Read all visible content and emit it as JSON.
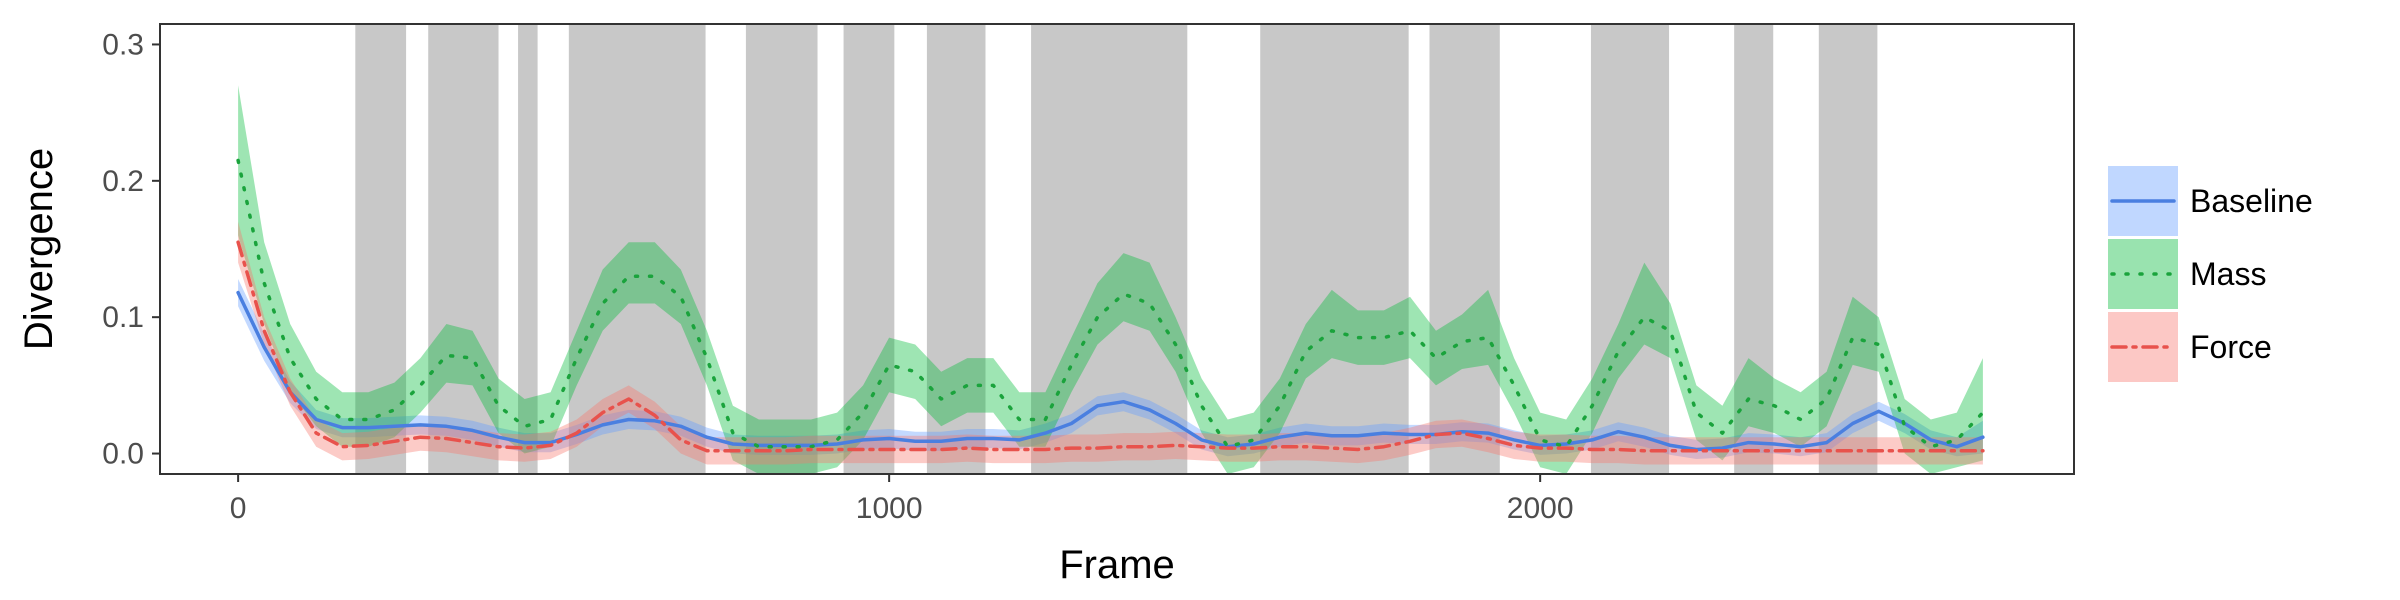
{
  "chart_data": {
    "type": "line",
    "title": "",
    "xlabel": "Frame",
    "ylabel": "Divergence",
    "xlim": [
      -120,
      2820
    ],
    "ylim": [
      -0.015,
      0.315
    ],
    "x_ticks": [
      0,
      1000,
      2000
    ],
    "y_ticks": [
      0.0,
      0.1,
      0.2,
      0.3
    ],
    "x_tick_labels": [
      "0",
      "1000",
      "2000"
    ],
    "y_tick_labels": [
      "0.0",
      "0.1",
      "0.2",
      "0.3"
    ],
    "grid": false,
    "legend_position": "right",
    "shaded_intervals": [
      [
        180,
        258
      ],
      [
        292,
        400
      ],
      [
        430,
        460
      ],
      [
        508,
        718
      ],
      [
        780,
        890
      ],
      [
        930,
        1008
      ],
      [
        1058,
        1148
      ],
      [
        1218,
        1458
      ],
      [
        1570,
        1798
      ],
      [
        1830,
        1938
      ],
      [
        2078,
        2198
      ],
      [
        2298,
        2358
      ],
      [
        2428,
        2518
      ]
    ],
    "shade_color": "#c8c8c8",
    "x": [
      0,
      40,
      80,
      120,
      160,
      200,
      240,
      280,
      320,
      360,
      400,
      440,
      480,
      520,
      560,
      600,
      640,
      680,
      720,
      760,
      800,
      840,
      880,
      920,
      960,
      1000,
      1040,
      1080,
      1120,
      1160,
      1200,
      1240,
      1280,
      1320,
      1360,
      1400,
      1440,
      1480,
      1520,
      1560,
      1600,
      1640,
      1680,
      1720,
      1760,
      1800,
      1840,
      1880,
      1920,
      1960,
      2000,
      2040,
      2080,
      2120,
      2160,
      2200,
      2240,
      2280,
      2320,
      2360,
      2400,
      2440,
      2480,
      2520,
      2560,
      2600,
      2640,
      2680
    ],
    "series": [
      {
        "name": "Baseline",
        "color": "#619cff",
        "line_color": "#4a7fe0",
        "dash": "solid",
        "values": [
          0.118,
          0.078,
          0.045,
          0.025,
          0.019,
          0.019,
          0.02,
          0.021,
          0.02,
          0.017,
          0.012,
          0.008,
          0.008,
          0.014,
          0.021,
          0.025,
          0.024,
          0.02,
          0.012,
          0.007,
          0.006,
          0.006,
          0.006,
          0.007,
          0.01,
          0.011,
          0.009,
          0.009,
          0.011,
          0.011,
          0.01,
          0.015,
          0.022,
          0.035,
          0.038,
          0.032,
          0.022,
          0.01,
          0.005,
          0.007,
          0.012,
          0.015,
          0.013,
          0.013,
          0.015,
          0.014,
          0.014,
          0.016,
          0.015,
          0.01,
          0.006,
          0.007,
          0.01,
          0.016,
          0.012,
          0.006,
          0.003,
          0.004,
          0.008,
          0.007,
          0.005,
          0.008,
          0.022,
          0.031,
          0.022,
          0.01,
          0.005,
          0.012
        ],
        "lower": [
          0.108,
          0.068,
          0.037,
          0.018,
          0.012,
          0.012,
          0.013,
          0.014,
          0.013,
          0.01,
          0.005,
          0.001,
          0.001,
          0.007,
          0.014,
          0.018,
          0.017,
          0.013,
          0.005,
          0.0,
          -0.001,
          -0.001,
          -0.001,
          0.0,
          0.003,
          0.004,
          0.002,
          0.002,
          0.004,
          0.004,
          0.003,
          0.008,
          0.015,
          0.028,
          0.031,
          0.025,
          0.015,
          0.003,
          -0.002,
          0.0,
          0.005,
          0.008,
          0.006,
          0.006,
          0.008,
          0.007,
          0.007,
          0.009,
          0.008,
          0.003,
          -0.001,
          0.0,
          0.003,
          0.009,
          0.005,
          -0.001,
          -0.004,
          -0.003,
          0.001,
          0.0,
          -0.002,
          0.001,
          0.015,
          0.024,
          0.015,
          0.003,
          -0.002,
          0.0
        ],
        "upper": [
          0.128,
          0.088,
          0.053,
          0.032,
          0.026,
          0.026,
          0.027,
          0.028,
          0.027,
          0.024,
          0.019,
          0.015,
          0.015,
          0.021,
          0.028,
          0.032,
          0.031,
          0.027,
          0.019,
          0.014,
          0.013,
          0.013,
          0.013,
          0.014,
          0.017,
          0.018,
          0.016,
          0.016,
          0.018,
          0.018,
          0.017,
          0.022,
          0.029,
          0.042,
          0.045,
          0.039,
          0.029,
          0.017,
          0.012,
          0.014,
          0.019,
          0.022,
          0.02,
          0.02,
          0.022,
          0.021,
          0.021,
          0.023,
          0.022,
          0.017,
          0.013,
          0.014,
          0.017,
          0.023,
          0.019,
          0.013,
          0.01,
          0.011,
          0.015,
          0.014,
          0.012,
          0.015,
          0.029,
          0.038,
          0.029,
          0.017,
          0.012,
          0.024
        ]
      },
      {
        "name": "Mass",
        "color": "#00ba38",
        "line_color": "#1aa33c",
        "dash": "dotted",
        "values": [
          0.215,
          0.125,
          0.07,
          0.04,
          0.025,
          0.025,
          0.032,
          0.05,
          0.072,
          0.07,
          0.035,
          0.02,
          0.025,
          0.07,
          0.11,
          0.13,
          0.13,
          0.115,
          0.07,
          0.015,
          0.005,
          0.005,
          0.005,
          0.01,
          0.03,
          0.065,
          0.06,
          0.04,
          0.05,
          0.05,
          0.025,
          0.025,
          0.065,
          0.1,
          0.117,
          0.11,
          0.08,
          0.035,
          0.005,
          0.01,
          0.035,
          0.075,
          0.09,
          0.085,
          0.085,
          0.09,
          0.07,
          0.082,
          0.085,
          0.05,
          0.01,
          0.005,
          0.035,
          0.075,
          0.1,
          0.09,
          0.03,
          0.015,
          0.04,
          0.035,
          0.025,
          0.04,
          0.085,
          0.08,
          0.02,
          0.005,
          0.01,
          0.03
        ],
        "lower": [
          0.16,
          0.095,
          0.045,
          0.02,
          0.005,
          0.005,
          0.012,
          0.03,
          0.052,
          0.05,
          0.015,
          0.0,
          0.005,
          0.05,
          0.09,
          0.11,
          0.11,
          0.095,
          0.05,
          -0.005,
          -0.015,
          -0.015,
          -0.015,
          -0.01,
          0.01,
          0.045,
          0.04,
          0.02,
          0.03,
          0.03,
          0.005,
          0.005,
          0.045,
          0.08,
          0.097,
          0.09,
          0.06,
          0.015,
          -0.015,
          -0.01,
          0.015,
          0.055,
          0.07,
          0.065,
          0.065,
          0.07,
          0.05,
          0.062,
          0.065,
          0.03,
          -0.01,
          -0.015,
          0.015,
          0.055,
          0.08,
          0.07,
          0.01,
          -0.005,
          0.02,
          0.015,
          0.005,
          0.02,
          0.065,
          0.06,
          0.0,
          -0.015,
          -0.01,
          -0.005
        ],
        "upper": [
          0.27,
          0.155,
          0.095,
          0.06,
          0.045,
          0.045,
          0.052,
          0.07,
          0.095,
          0.09,
          0.055,
          0.04,
          0.045,
          0.09,
          0.135,
          0.155,
          0.155,
          0.135,
          0.09,
          0.035,
          0.025,
          0.025,
          0.025,
          0.03,
          0.05,
          0.085,
          0.08,
          0.06,
          0.07,
          0.07,
          0.045,
          0.045,
          0.085,
          0.125,
          0.147,
          0.14,
          0.1,
          0.055,
          0.025,
          0.03,
          0.055,
          0.095,
          0.12,
          0.105,
          0.105,
          0.115,
          0.09,
          0.102,
          0.12,
          0.07,
          0.03,
          0.025,
          0.055,
          0.095,
          0.14,
          0.11,
          0.05,
          0.035,
          0.07,
          0.055,
          0.045,
          0.06,
          0.115,
          0.1,
          0.04,
          0.025,
          0.03,
          0.07
        ]
      },
      {
        "name": "Force",
        "color": "#f8766d",
        "line_color": "#e8524c",
        "dash": "dashdot",
        "values": [
          0.155,
          0.09,
          0.045,
          0.015,
          0.005,
          0.006,
          0.009,
          0.012,
          0.011,
          0.008,
          0.005,
          0.004,
          0.006,
          0.015,
          0.03,
          0.04,
          0.028,
          0.01,
          0.002,
          0.002,
          0.002,
          0.002,
          0.003,
          0.003,
          0.003,
          0.003,
          0.003,
          0.003,
          0.004,
          0.003,
          0.003,
          0.003,
          0.004,
          0.004,
          0.005,
          0.005,
          0.006,
          0.005,
          0.004,
          0.004,
          0.005,
          0.005,
          0.004,
          0.003,
          0.005,
          0.009,
          0.014,
          0.015,
          0.011,
          0.006,
          0.004,
          0.004,
          0.003,
          0.003,
          0.002,
          0.002,
          0.002,
          0.002,
          0.002,
          0.002,
          0.002,
          0.002,
          0.002,
          0.002,
          0.002,
          0.002,
          0.002,
          0.002
        ],
        "lower": [
          0.14,
          0.08,
          0.035,
          0.005,
          -0.005,
          -0.004,
          -0.001,
          0.002,
          0.001,
          -0.002,
          -0.005,
          -0.006,
          -0.004,
          0.005,
          0.02,
          0.03,
          0.018,
          0.0,
          -0.008,
          -0.008,
          -0.008,
          -0.008,
          -0.007,
          -0.007,
          -0.007,
          -0.007,
          -0.007,
          -0.007,
          -0.006,
          -0.007,
          -0.007,
          -0.007,
          -0.006,
          -0.006,
          -0.005,
          -0.005,
          -0.004,
          -0.005,
          -0.006,
          -0.006,
          -0.005,
          -0.005,
          -0.006,
          -0.007,
          -0.005,
          -0.001,
          0.004,
          0.005,
          0.001,
          -0.004,
          -0.006,
          -0.006,
          -0.007,
          -0.007,
          -0.008,
          -0.008,
          -0.008,
          -0.008,
          -0.008,
          -0.008,
          -0.008,
          -0.008,
          -0.008,
          -0.008,
          -0.008,
          -0.008,
          -0.008,
          -0.008
        ],
        "upper": [
          0.17,
          0.1,
          0.055,
          0.025,
          0.015,
          0.016,
          0.019,
          0.022,
          0.021,
          0.018,
          0.015,
          0.014,
          0.016,
          0.025,
          0.04,
          0.05,
          0.038,
          0.02,
          0.012,
          0.012,
          0.012,
          0.012,
          0.013,
          0.013,
          0.013,
          0.013,
          0.013,
          0.013,
          0.014,
          0.013,
          0.013,
          0.013,
          0.014,
          0.014,
          0.015,
          0.015,
          0.016,
          0.015,
          0.014,
          0.014,
          0.015,
          0.015,
          0.014,
          0.013,
          0.015,
          0.019,
          0.024,
          0.025,
          0.021,
          0.016,
          0.014,
          0.014,
          0.013,
          0.013,
          0.012,
          0.012,
          0.012,
          0.012,
          0.012,
          0.012,
          0.012,
          0.012,
          0.012,
          0.012,
          0.012,
          0.012,
          0.012,
          0.012
        ]
      }
    ]
  }
}
